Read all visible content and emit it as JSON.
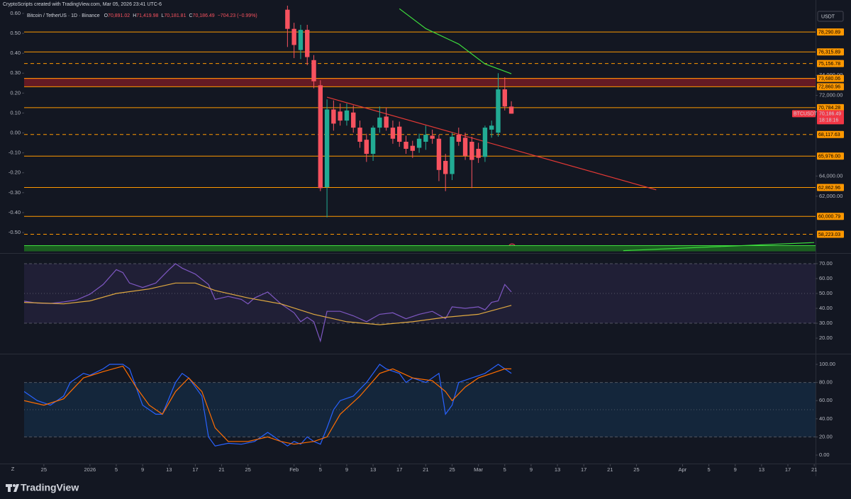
{
  "header": {
    "credit": "CryptoScripts created with TradingView.com, Mar 05, 2026 23:41 UTC-6",
    "currency": "USDT"
  },
  "chart_data": [
    {
      "type": "candlestick",
      "title": "Bitcoin / TetherUS · 1D · Binance",
      "legend": [
        {
          "key": "O",
          "value": "70,891.02"
        },
        {
          "key": "H",
          "value": "71,419.98"
        },
        {
          "key": "L",
          "value": "70,181.81"
        },
        {
          "key": "C",
          "value": "70,186.49"
        }
      ],
      "change": "−704.23 (−0.99%)",
      "up_color": "#22ab94",
      "down_color": "#f7525f",
      "xlim": [
        -9,
        111.2
      ],
      "xticks": [
        {
          "value": -6,
          "label": "25"
        },
        {
          "value": 1,
          "label": "2026"
        },
        {
          "value": 5,
          "label": "5"
        },
        {
          "value": 9,
          "label": "9"
        },
        {
          "value": 13,
          "label": "13"
        },
        {
          "value": 17,
          "label": "17"
        },
        {
          "value": 21,
          "label": "21"
        },
        {
          "value": 25,
          "label": "25"
        },
        {
          "value": 32,
          "label": "Feb"
        },
        {
          "value": 36,
          "label": "5"
        },
        {
          "value": 40,
          "label": "9"
        },
        {
          "value": 44,
          "label": "13"
        },
        {
          "value": 48,
          "label": "17"
        },
        {
          "value": 52,
          "label": "21"
        },
        {
          "value": 56,
          "label": "25"
        },
        {
          "value": 60,
          "label": "Mar"
        },
        {
          "value": 64,
          "label": "5"
        },
        {
          "value": 68,
          "label": "9"
        },
        {
          "value": 72,
          "label": "13"
        },
        {
          "value": 76,
          "label": "17"
        },
        {
          "value": 80,
          "label": "21"
        },
        {
          "value": 84,
          "label": "25"
        },
        {
          "value": 91,
          "label": "Apr"
        },
        {
          "value": 95,
          "label": "5"
        },
        {
          "value": 99,
          "label": "9"
        },
        {
          "value": 103,
          "label": "13"
        },
        {
          "value": 107,
          "label": "17"
        },
        {
          "value": 111,
          "label": "21"
        }
      ],
      "x": [
        31,
        32,
        33,
        34,
        35,
        36,
        37,
        38,
        39,
        40,
        41,
        42,
        43,
        44,
        45,
        46,
        47,
        48,
        49,
        50,
        51,
        52,
        53,
        54,
        55,
        56,
        57,
        58,
        59,
        60,
        61,
        62,
        63,
        64,
        65
      ],
      "open": [
        80500,
        78600,
        76500,
        78500,
        75500,
        73000,
        62900,
        70600,
        70400,
        69500,
        70300,
        68800,
        67600,
        66200,
        68800,
        69900,
        68800,
        68900,
        67400,
        67000,
        66800,
        67400,
        68000,
        67700,
        65500,
        64200,
        68100,
        67800,
        67400,
        66700,
        65900,
        68600,
        68300,
        72600,
        70891.02
      ],
      "high": [
        81200,
        79200,
        79000,
        79000,
        76000,
        73500,
        71600,
        71500,
        71200,
        71200,
        71000,
        69500,
        68200,
        69000,
        70900,
        70800,
        69500,
        69400,
        68000,
        67500,
        68200,
        69000,
        68600,
        68100,
        66200,
        68300,
        68800,
        68300,
        67900,
        67300,
        69000,
        69500,
        74200,
        73800,
        71419.98
      ],
      "low": [
        76800,
        75700,
        75600,
        75000,
        72700,
        62500,
        59900,
        68500,
        69000,
        69000,
        68300,
        66800,
        65400,
        65500,
        68300,
        68500,
        67200,
        66900,
        66200,
        65800,
        66300,
        66600,
        67200,
        63500,
        62500,
        63600,
        67000,
        65600,
        62800,
        65300,
        65400,
        67800,
        67900,
        70500,
        70181.81
      ],
      "close": [
        78600,
        77000,
        78500,
        75800,
        73400,
        62800,
        70600,
        69200,
        69500,
        70500,
        68800,
        67400,
        66200,
        68800,
        69800,
        68800,
        67700,
        67400,
        66700,
        66500,
        67700,
        68100,
        67700,
        64600,
        64200,
        67900,
        67400,
        66000,
        65600,
        65800,
        68800,
        69000,
        72600,
        70900,
        70186.49
      ],
      "ylim": [
        56500,
        80900
      ],
      "yticks": [
        {
          "value": 62000,
          "label": "62,000.00"
        },
        {
          "value": 64000,
          "label": "64,000.00"
        },
        {
          "value": 72000,
          "label": "72,000.00"
        },
        {
          "value": 74000,
          "label": "74,000.00"
        }
      ],
      "y2lim": [
        -0.596,
        0.639
      ],
      "y2ticks": [
        {
          "value": 0.6,
          "label": "0.60"
        },
        {
          "value": 0.5,
          "label": "0.50"
        },
        {
          "value": 0.4,
          "label": "0.40"
        },
        {
          "value": 0.3,
          "label": "0.30"
        },
        {
          "value": 0.2,
          "label": "0.20"
        },
        {
          "value": 0.1,
          "label": "0.10"
        },
        {
          "value": 0,
          "label": "0.00"
        },
        {
          "value": -0.1,
          "label": "-0.10"
        },
        {
          "value": -0.2,
          "label": "-0.20"
        },
        {
          "value": -0.3,
          "label": "-0.30"
        },
        {
          "value": -0.4,
          "label": "-0.40"
        },
        {
          "value": -0.5,
          "label": "-0.50"
        }
      ],
      "level_color": "#ff9800",
      "levels": [
        {
          "value": 78290.89,
          "label": "78,290.89",
          "style": "solid"
        },
        {
          "value": 76315.89,
          "label": "76,315.89",
          "style": "solid"
        },
        {
          "value": 75156.78,
          "label": "75,156.78",
          "style": "dashed"
        },
        {
          "value": 73680.06,
          "label": "73,680.06",
          "style": "solid"
        },
        {
          "value": 72860.96,
          "label": "72,860.96",
          "style": "solid"
        },
        {
          "value": 70784.28,
          "label": "70,784.28",
          "style": "solid"
        },
        {
          "value": 68117.63,
          "label": "68,117.63",
          "style": "dashed"
        },
        {
          "value": 65976.0,
          "label": "65,976.00",
          "style": "solid"
        },
        {
          "value": 62862.96,
          "label": "62,862.96",
          "style": "solid"
        },
        {
          "value": 60000.79,
          "label": "60,000.79",
          "style": "solid"
        },
        {
          "value": 58223.03,
          "label": "58,223.03",
          "style": "dashed"
        }
      ],
      "zones": [
        {
          "from": 72860.96,
          "to": 73680.06,
          "color": "rgba(200,30,40,0.45)",
          "edge": "#e53935"
        },
        {
          "from": 56530,
          "to": 57100,
          "color": "#1b5e20",
          "edge": "#3ddc3d"
        }
      ],
      "overlays": [
        {
          "color": "#3ddc3d",
          "x": [
            48,
            52,
            57,
            61,
            65
          ],
          "values": [
            80596,
            78632,
            77088,
            75123,
            74140
          ]
        },
        {
          "color": "#e53935",
          "x": [
            37,
            87
          ],
          "values": [
            71825,
            62632
          ]
        },
        {
          "color": "#3ddc3d",
          "x": [
            82,
            111
          ],
          "values": [
            56600,
            57400
          ]
        }
      ],
      "symbol": "BTCUSDT",
      "last_price": {
        "value": 70186.49,
        "label": "70,186.49",
        "countdown": "18:18:16",
        "color": "#f23645"
      }
    },
    {
      "type": "line",
      "ylim": [
        10.5,
        75.7
      ],
      "yticks": [
        {
          "value": 70,
          "label": "70.00"
        },
        {
          "value": 60,
          "label": "60.00"
        },
        {
          "value": 50,
          "label": "50.00"
        },
        {
          "value": 40,
          "label": "40.00"
        },
        {
          "value": 30,
          "label": "30.00"
        },
        {
          "value": 20,
          "label": "20.00"
        }
      ],
      "bands": {
        "upper": 70,
        "middle": 50,
        "lower": 30,
        "fill": "rgba(126,87,194,0.13)"
      },
      "series": [
        {
          "color": "#7e57c2",
          "x": [
            -9,
            -7,
            -5,
            -3,
            -1,
            1,
            3,
            5,
            6,
            7,
            9,
            11,
            13,
            14,
            15,
            17,
            19,
            20,
            22,
            24,
            25,
            26,
            28,
            30,
            32,
            33,
            34,
            35,
            36,
            37,
            39,
            41,
            43,
            45,
            47,
            49,
            51,
            53,
            55,
            56,
            58,
            60,
            61,
            62,
            63,
            64,
            65
          ],
          "values": [
            44.8,
            43.5,
            43.3,
            44.3,
            45.7,
            49.5,
            56,
            66,
            64,
            57,
            54,
            57,
            66,
            70,
            67,
            63,
            56,
            46,
            48,
            46,
            43,
            47,
            51,
            43,
            37,
            31,
            34,
            31,
            18,
            38,
            38,
            35,
            31,
            36,
            37,
            33,
            36,
            38,
            33,
            41,
            40,
            41,
            39,
            44,
            45,
            56,
            51
          ]
        },
        {
          "color": "#e0a940",
          "x": [
            -9,
            -3,
            1,
            5,
            10,
            14,
            17,
            20,
            25,
            30,
            35,
            40,
            45,
            50,
            55,
            60,
            65
          ],
          "values": [
            44,
            43,
            45,
            50,
            53,
            57,
            57,
            52,
            47,
            43,
            36,
            31,
            29,
            31,
            34,
            36,
            42
          ]
        }
      ]
    },
    {
      "type": "line",
      "ylim": [
        -7.8,
        109.4
      ],
      "yticks": [
        {
          "value": 100,
          "label": "100.00"
        },
        {
          "value": 80,
          "label": "80.00"
        },
        {
          "value": 60,
          "label": "60.00"
        },
        {
          "value": 40,
          "label": "40.00"
        },
        {
          "value": 20,
          "label": "20.00"
        },
        {
          "value": 0,
          "label": "0.00"
        }
      ],
      "bands": {
        "upper": 80,
        "middle": 50,
        "lower": 20,
        "fill": "rgba(33,150,243,0.12)"
      },
      "series": [
        {
          "color": "#2962ff",
          "x": [
            -9,
            -7,
            -5,
            -3,
            -2,
            0,
            1,
            3,
            4,
            5,
            6,
            7,
            9,
            11,
            12,
            14,
            15,
            16,
            18,
            19,
            20,
            22,
            24,
            26,
            28,
            29,
            31,
            32,
            33,
            34,
            35,
            36,
            37,
            38,
            39,
            41,
            43,
            45,
            46,
            48,
            49,
            50,
            52,
            54,
            55,
            56,
            57,
            59,
            61,
            62,
            63,
            64,
            65
          ],
          "values": [
            70,
            60,
            55,
            65,
            80,
            90,
            88,
            95,
            100,
            100,
            100,
            95,
            55,
            45,
            45,
            80,
            90,
            85,
            65,
            20,
            10,
            13,
            12,
            15,
            25,
            20,
            10,
            15,
            12,
            20,
            15,
            12,
            30,
            50,
            60,
            65,
            80,
            100,
            95,
            90,
            80,
            85,
            80,
            90,
            45,
            55,
            80,
            85,
            90,
            95,
            100,
            95,
            90
          ]
        },
        {
          "color": "#ff6d00",
          "x": [
            -9,
            -6,
            -3,
            0,
            3,
            6,
            8,
            10,
            12,
            14,
            16,
            18,
            20,
            22,
            25,
            28,
            30,
            32,
            35,
            37,
            39,
            42,
            45,
            47,
            50,
            53,
            55,
            56,
            58,
            60,
            62,
            64,
            65
          ],
          "values": [
            60,
            55,
            62,
            85,
            92,
            98,
            75,
            55,
            45,
            70,
            85,
            70,
            30,
            15,
            15,
            20,
            15,
            12,
            15,
            20,
            45,
            65,
            90,
            95,
            85,
            82,
            70,
            60,
            75,
            85,
            90,
            95,
            95
          ]
        }
      ]
    }
  ],
  "footer": {
    "toggle": "Z",
    "brand": "TradingView"
  }
}
